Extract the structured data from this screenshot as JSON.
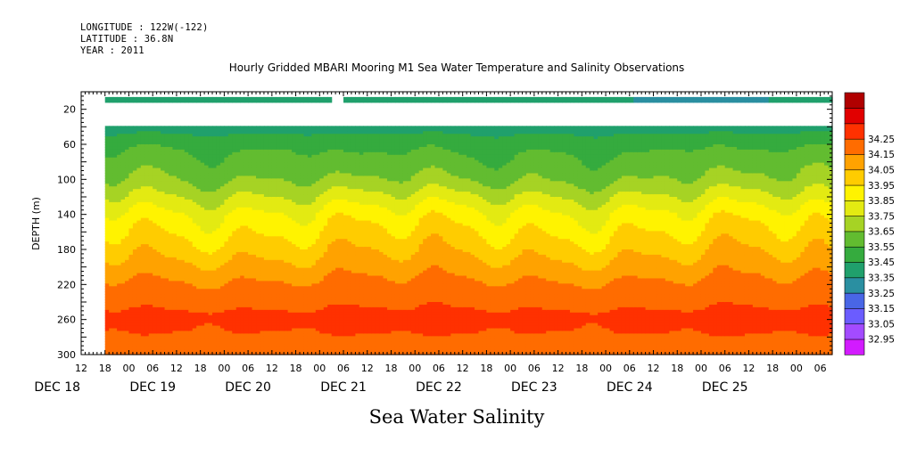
{
  "header": {
    "longitude": "LONGITUDE : 122W(-122)",
    "latitude": "LATITUDE : 36.8N",
    "year": "YEAR : 2011"
  },
  "chart_data": {
    "type": "heatmap",
    "title": "Hourly Gridded MBARI Mooring M1 Sea Water Temperature and Salinity Observations",
    "xlabel": "",
    "ylabel": "DEPTH (m)",
    "bottom_label": "Sea Water Salinity",
    "ylim": [
      300,
      0
    ],
    "y_ticks": [
      20,
      60,
      100,
      140,
      180,
      220,
      260,
      300
    ],
    "x_hour_ticks": [
      "12",
      "18",
      "00",
      "06",
      "12",
      "18",
      "00",
      "06",
      "12",
      "18",
      "00",
      "06",
      "12",
      "18",
      "00",
      "06",
      "12",
      "18",
      "00",
      "06",
      "12",
      "18",
      "00",
      "06",
      "12",
      "18",
      "00",
      "06",
      "12",
      "18",
      "00",
      "06"
    ],
    "x_date_labels": [
      "DEC 18",
      "DEC 19",
      "DEC 20",
      "DEC 21",
      "DEC 22",
      "DEC 23",
      "DEC 24",
      "DEC 25"
    ],
    "x_range_hours_from_dec18_00": [
      12,
      201
    ],
    "data_start_hour": 18,
    "surface_gap_hours": [
      75,
      78
    ],
    "missing_depth_band_m": [
      13,
      40
    ],
    "colorbar": {
      "levels": [
        32.95,
        33.05,
        33.15,
        33.25,
        33.35,
        33.45,
        33.55,
        33.65,
        33.75,
        33.85,
        33.95,
        34.05,
        34.15,
        34.25
      ],
      "colors": [
        "#d21bff",
        "#a34bff",
        "#6b5cff",
        "#4966e6",
        "#2a8fa1",
        "#20a06c",
        "#35ab3e",
        "#62bc30",
        "#a6d324",
        "#e3ea12",
        "#fff300",
        "#ffcc00",
        "#ffa200",
        "#ff6c00",
        "#ff3100",
        "#e10000",
        "#b00000"
      ]
    },
    "profile": [
      {
        "depth": 8,
        "value": 33.37
      },
      {
        "depth": 40,
        "value": 33.4
      },
      {
        "depth": 60,
        "value": 33.52
      },
      {
        "depth": 100,
        "value": 33.65
      },
      {
        "depth": 140,
        "value": 33.88
      },
      {
        "depth": 180,
        "value": 34.02
      },
      {
        "depth": 220,
        "value": 34.17
      },
      {
        "depth": 255,
        "value": 34.27
      },
      {
        "depth": 275,
        "value": 34.25
      },
      {
        "depth": 300,
        "value": 34.22
      }
    ]
  }
}
